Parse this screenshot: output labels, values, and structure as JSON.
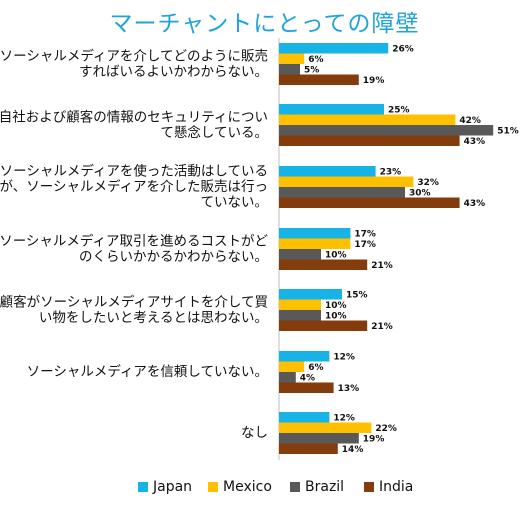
{
  "colors": {
    "Japan": "#17b2e6",
    "Mexico": "#ffc000",
    "Brazil": "#595959",
    "India": "#843c0c"
  },
  "chart_data": {
    "type": "bar",
    "orientation": "horizontal",
    "title": "マーチャントにとっての障壁",
    "categories": [
      [
        "ソーシャルメディアを介してどのように販売",
        "すればいるよいかわからない。"
      ],
      [
        "自社および顧客の情報のセキュリティについ",
        "て懸念している。"
      ],
      [
        "ソーシャルメディアを使った活動はしている",
        "が、ソーシャルメディアを介した販売は行っ",
        "ていない。"
      ],
      [
        "ソーシャルメディア取引を進めるコストがど",
        "のくらいかかるかわからない。"
      ],
      [
        "顧客がソーシャルメディアサイトを介して買",
        "い物をしたいと考えるとは思わない。"
      ],
      [
        "ソーシャルメディアを信頼していない。"
      ],
      [
        "なし"
      ]
    ],
    "series": [
      {
        "name": "Japan",
        "values": [
          26,
          25,
          23,
          17,
          15,
          12,
          12
        ]
      },
      {
        "name": "Mexico",
        "values": [
          6,
          42,
          32,
          17,
          10,
          6,
          22
        ]
      },
      {
        "name": "Brazil",
        "values": [
          5,
          51,
          30,
          10,
          10,
          4,
          19
        ]
      },
      {
        "name": "India",
        "values": [
          19,
          43,
          43,
          21,
          21,
          13,
          14
        ]
      }
    ],
    "value_suffix": "%",
    "legend_position": "bottom",
    "grid": false
  }
}
